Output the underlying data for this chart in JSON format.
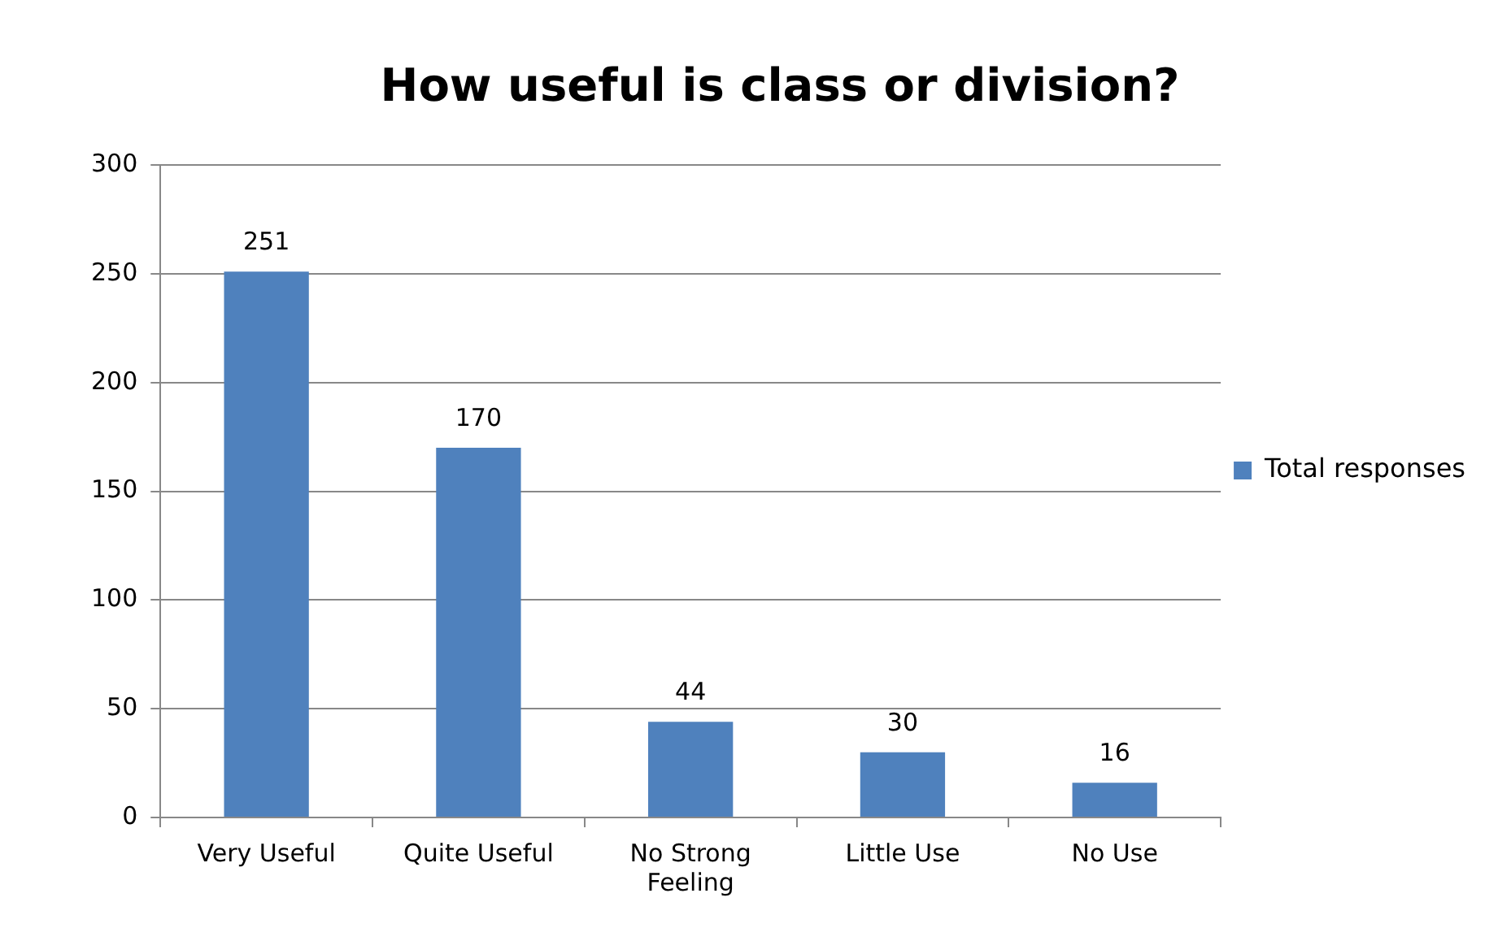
{
  "chart_data": {
    "type": "bar",
    "title": "How useful is class or division?",
    "categories": [
      "Very Useful",
      "Quite Useful",
      "No Strong Feeling",
      "Little Use",
      "No Use"
    ],
    "series": [
      {
        "name": "Total responses",
        "color": "#4f81bd",
        "values": [
          251,
          170,
          44,
          30,
          16
        ]
      }
    ],
    "ylim": [
      0,
      300
    ],
    "yticks": [
      0,
      50,
      100,
      150,
      200,
      250,
      300
    ],
    "grid": "y",
    "legend": "right",
    "data_labels": true
  }
}
